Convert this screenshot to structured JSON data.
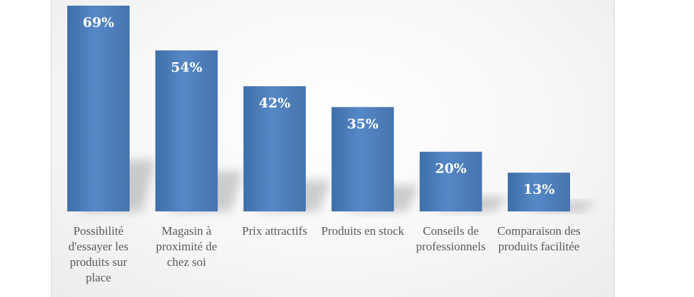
{
  "chart_data": {
    "type": "bar",
    "title": "",
    "xlabel": "",
    "ylabel": "",
    "ylim": [
      0,
      69
    ],
    "grid": false,
    "legend": "none",
    "color": "#4f81bd",
    "categories": [
      "Possibilité d'essayer les produits sur place",
      "Magasin à proximité de chez soi",
      "Prix attractifs",
      "Produits en stock",
      "Conseils de professionnels",
      "Comparaison des produits facilitée"
    ],
    "values": [
      69,
      54,
      42,
      35,
      20,
      13
    ],
    "data_labels": [
      "69%",
      "54%",
      "42%",
      "35%",
      "20%",
      "13%"
    ]
  }
}
